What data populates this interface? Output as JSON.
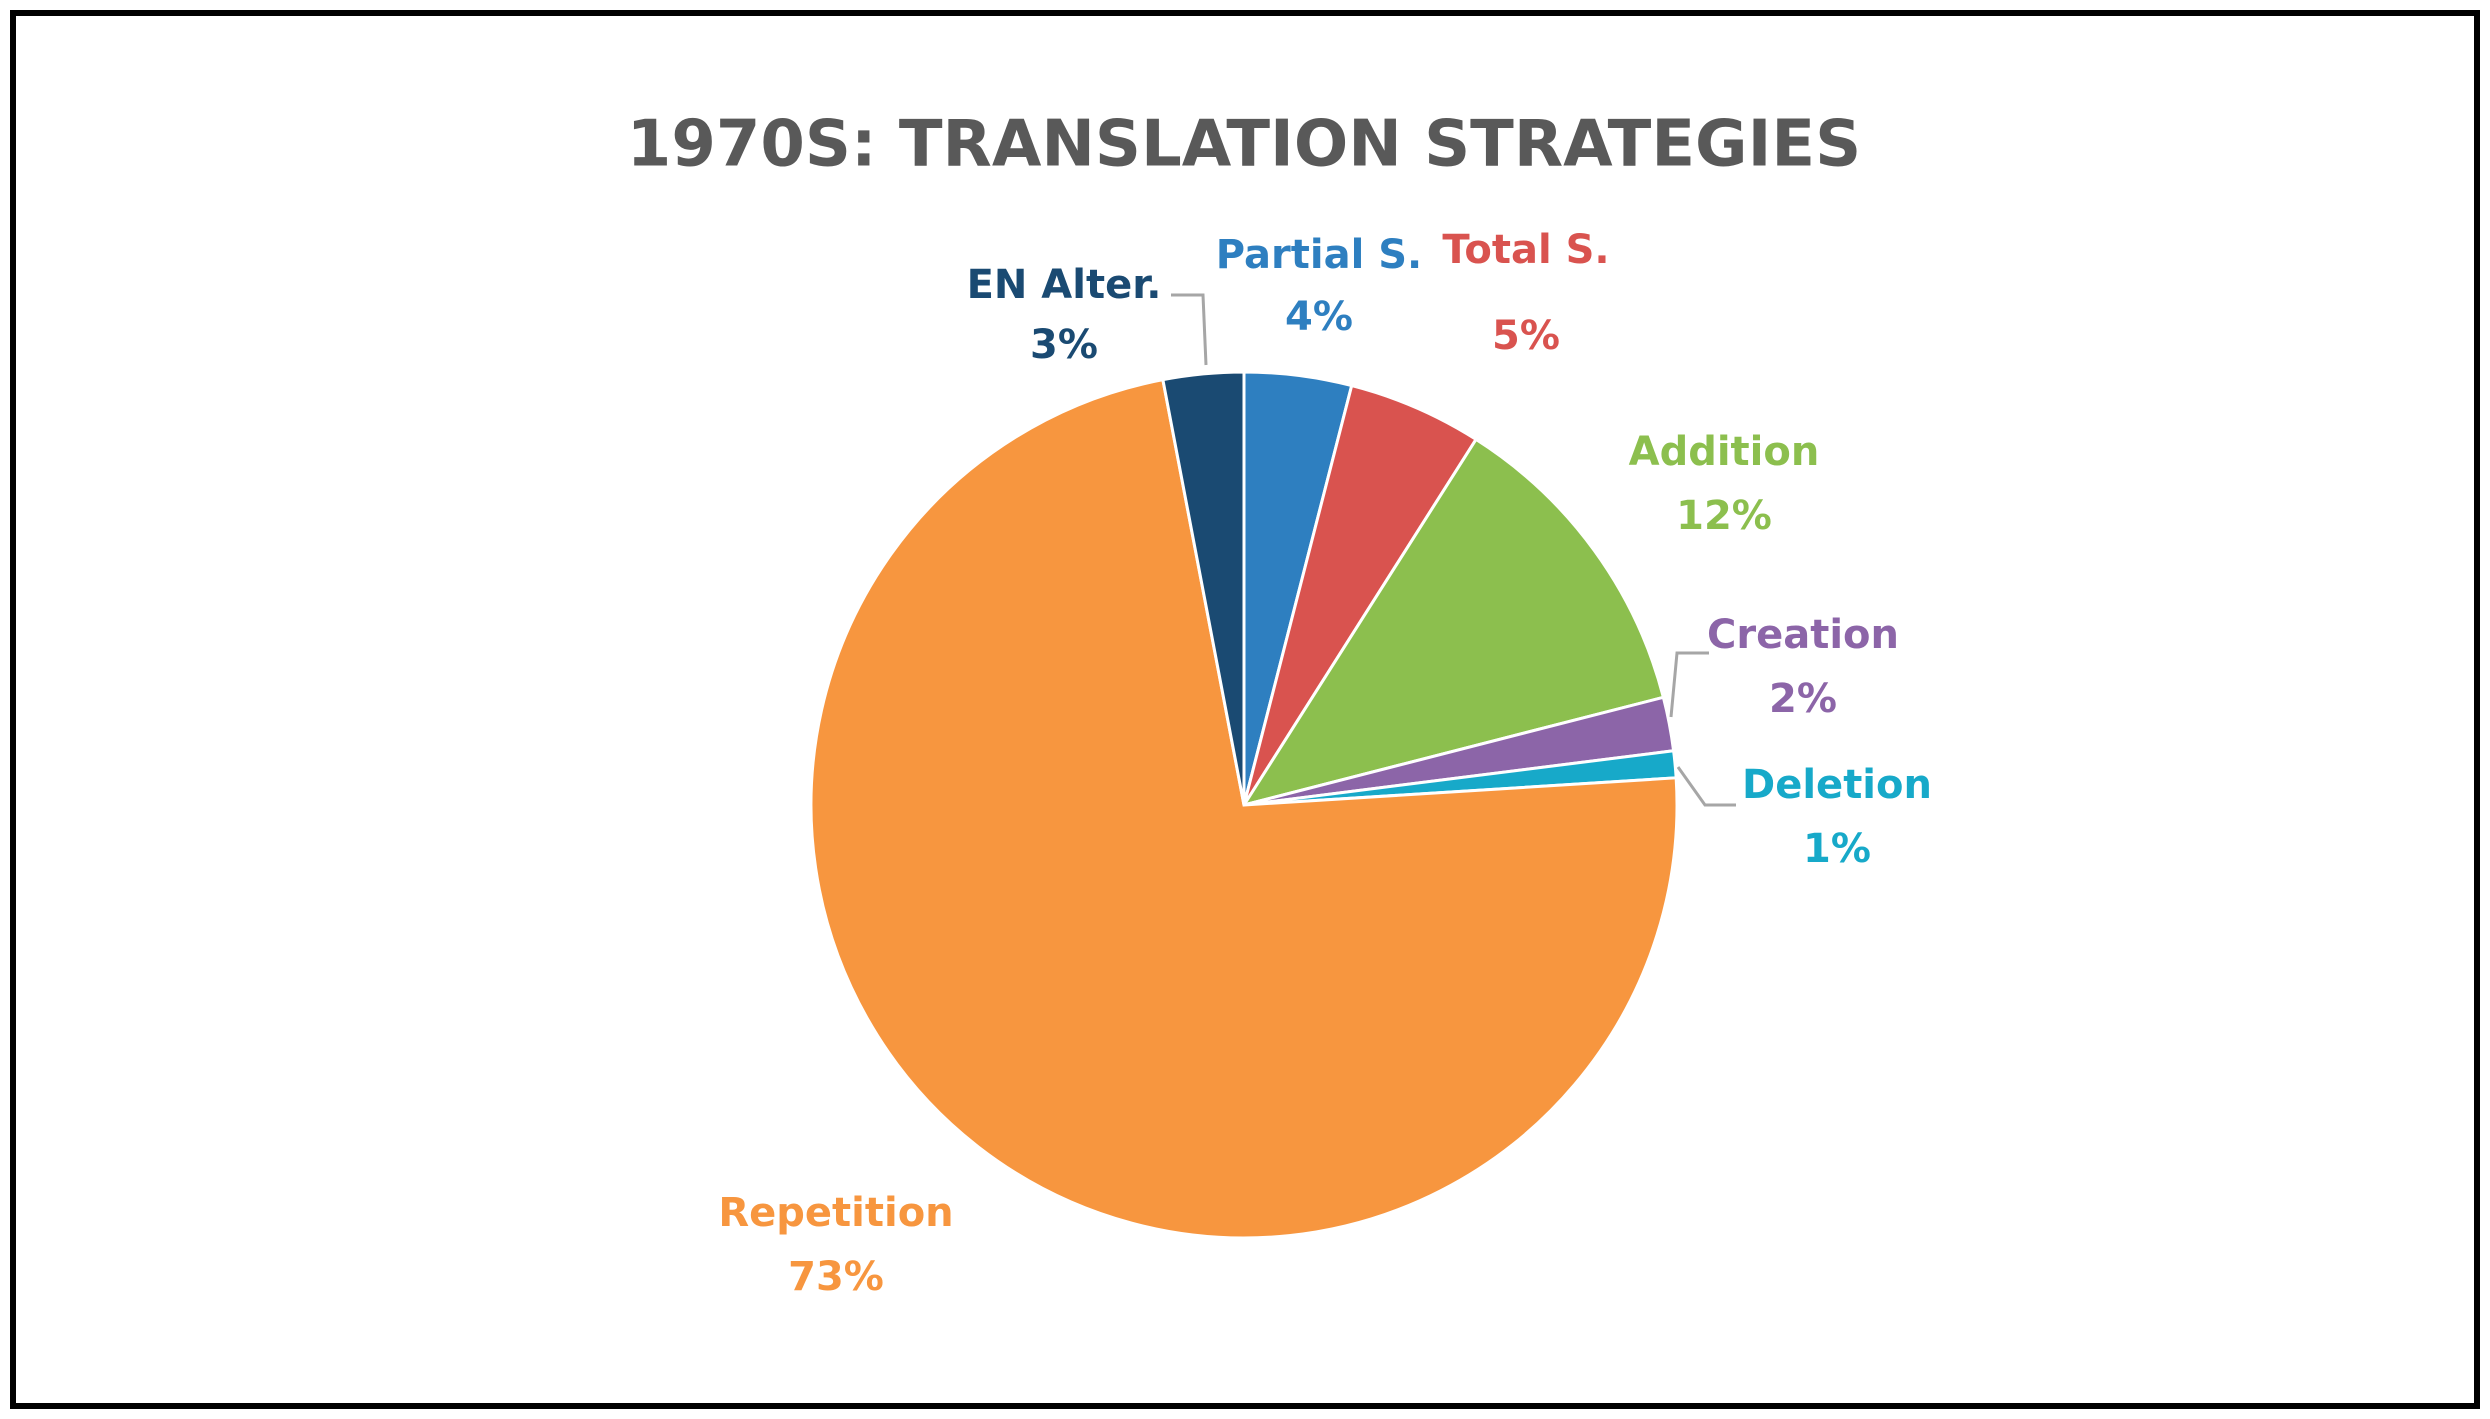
{
  "chart_data": {
    "type": "pie",
    "title": "1970S: TRANSLATION STRATEGIES",
    "categories": [
      "Partial S.",
      "Total S.",
      "Addition",
      "Creation",
      "Deletion",
      "Repetition",
      "EN Alter."
    ],
    "values": [
      4,
      5,
      12,
      2,
      1,
      73,
      3
    ],
    "value_labels": [
      "4%",
      "5%",
      "12%",
      "2%",
      "1%",
      "73%",
      "3%"
    ],
    "colors": [
      "#2e7fc0",
      "#d9534f",
      "#8cbf4e",
      "#8c65a8",
      "#17a9c9",
      "#f7963f",
      "#1a4a72"
    ]
  }
}
